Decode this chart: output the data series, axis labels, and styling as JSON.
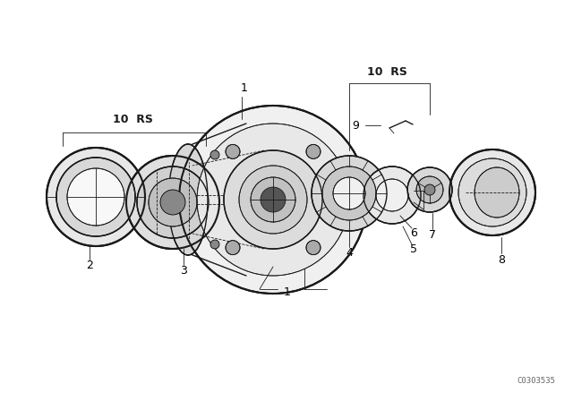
{
  "bg_color": "#ffffff",
  "line_color": "#1a1a1a",
  "watermark": "C0303535",
  "figsize": [
    6.4,
    4.48
  ],
  "dpi": 100
}
